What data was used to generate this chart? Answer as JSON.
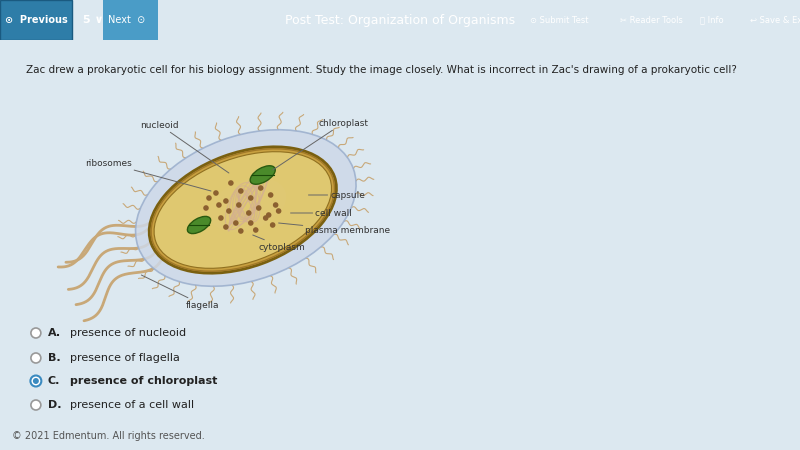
{
  "bg_color": "#dce8f0",
  "panel_color": "#ffffff",
  "header_color": "#4a9cc7",
  "header_text": "Post Test: Organization of Organisms",
  "question_text": "Zac drew a prokaryotic cell for his biology assignment. Study the image closely. What is incorrect in Zac's drawing of a prokaryotic cell?",
  "answer_choices": [
    "A.",
    "B.",
    "C.",
    "D."
  ],
  "answer_texts": [
    "presence of nucleoid",
    "presence of flagella",
    "presence of chloroplast",
    "presence of a cell wall"
  ],
  "selected_answer": 2,
  "footer_text": "© 2021 Edmentum. All rights reserved.",
  "cell_body_color": "#c8a040",
  "cell_body_edge_color": "#7a6010",
  "capsule_color": "#cdd8e8",
  "capsule_edge_color": "#9aaecc",
  "cytoplasm_fill": "#dfc870",
  "nucleoid_line_color": "#d4b090",
  "chloroplast_color": "#4a8a2a",
  "chloroplast_edge_color": "#2a5a10",
  "ribosome_dot_color": "#8b6030",
  "flagella_color": "#c8a878",
  "pili_color": "#c8a878",
  "label_font_size": 6.5,
  "label_color": "#333333",
  "line_color": "#666666"
}
